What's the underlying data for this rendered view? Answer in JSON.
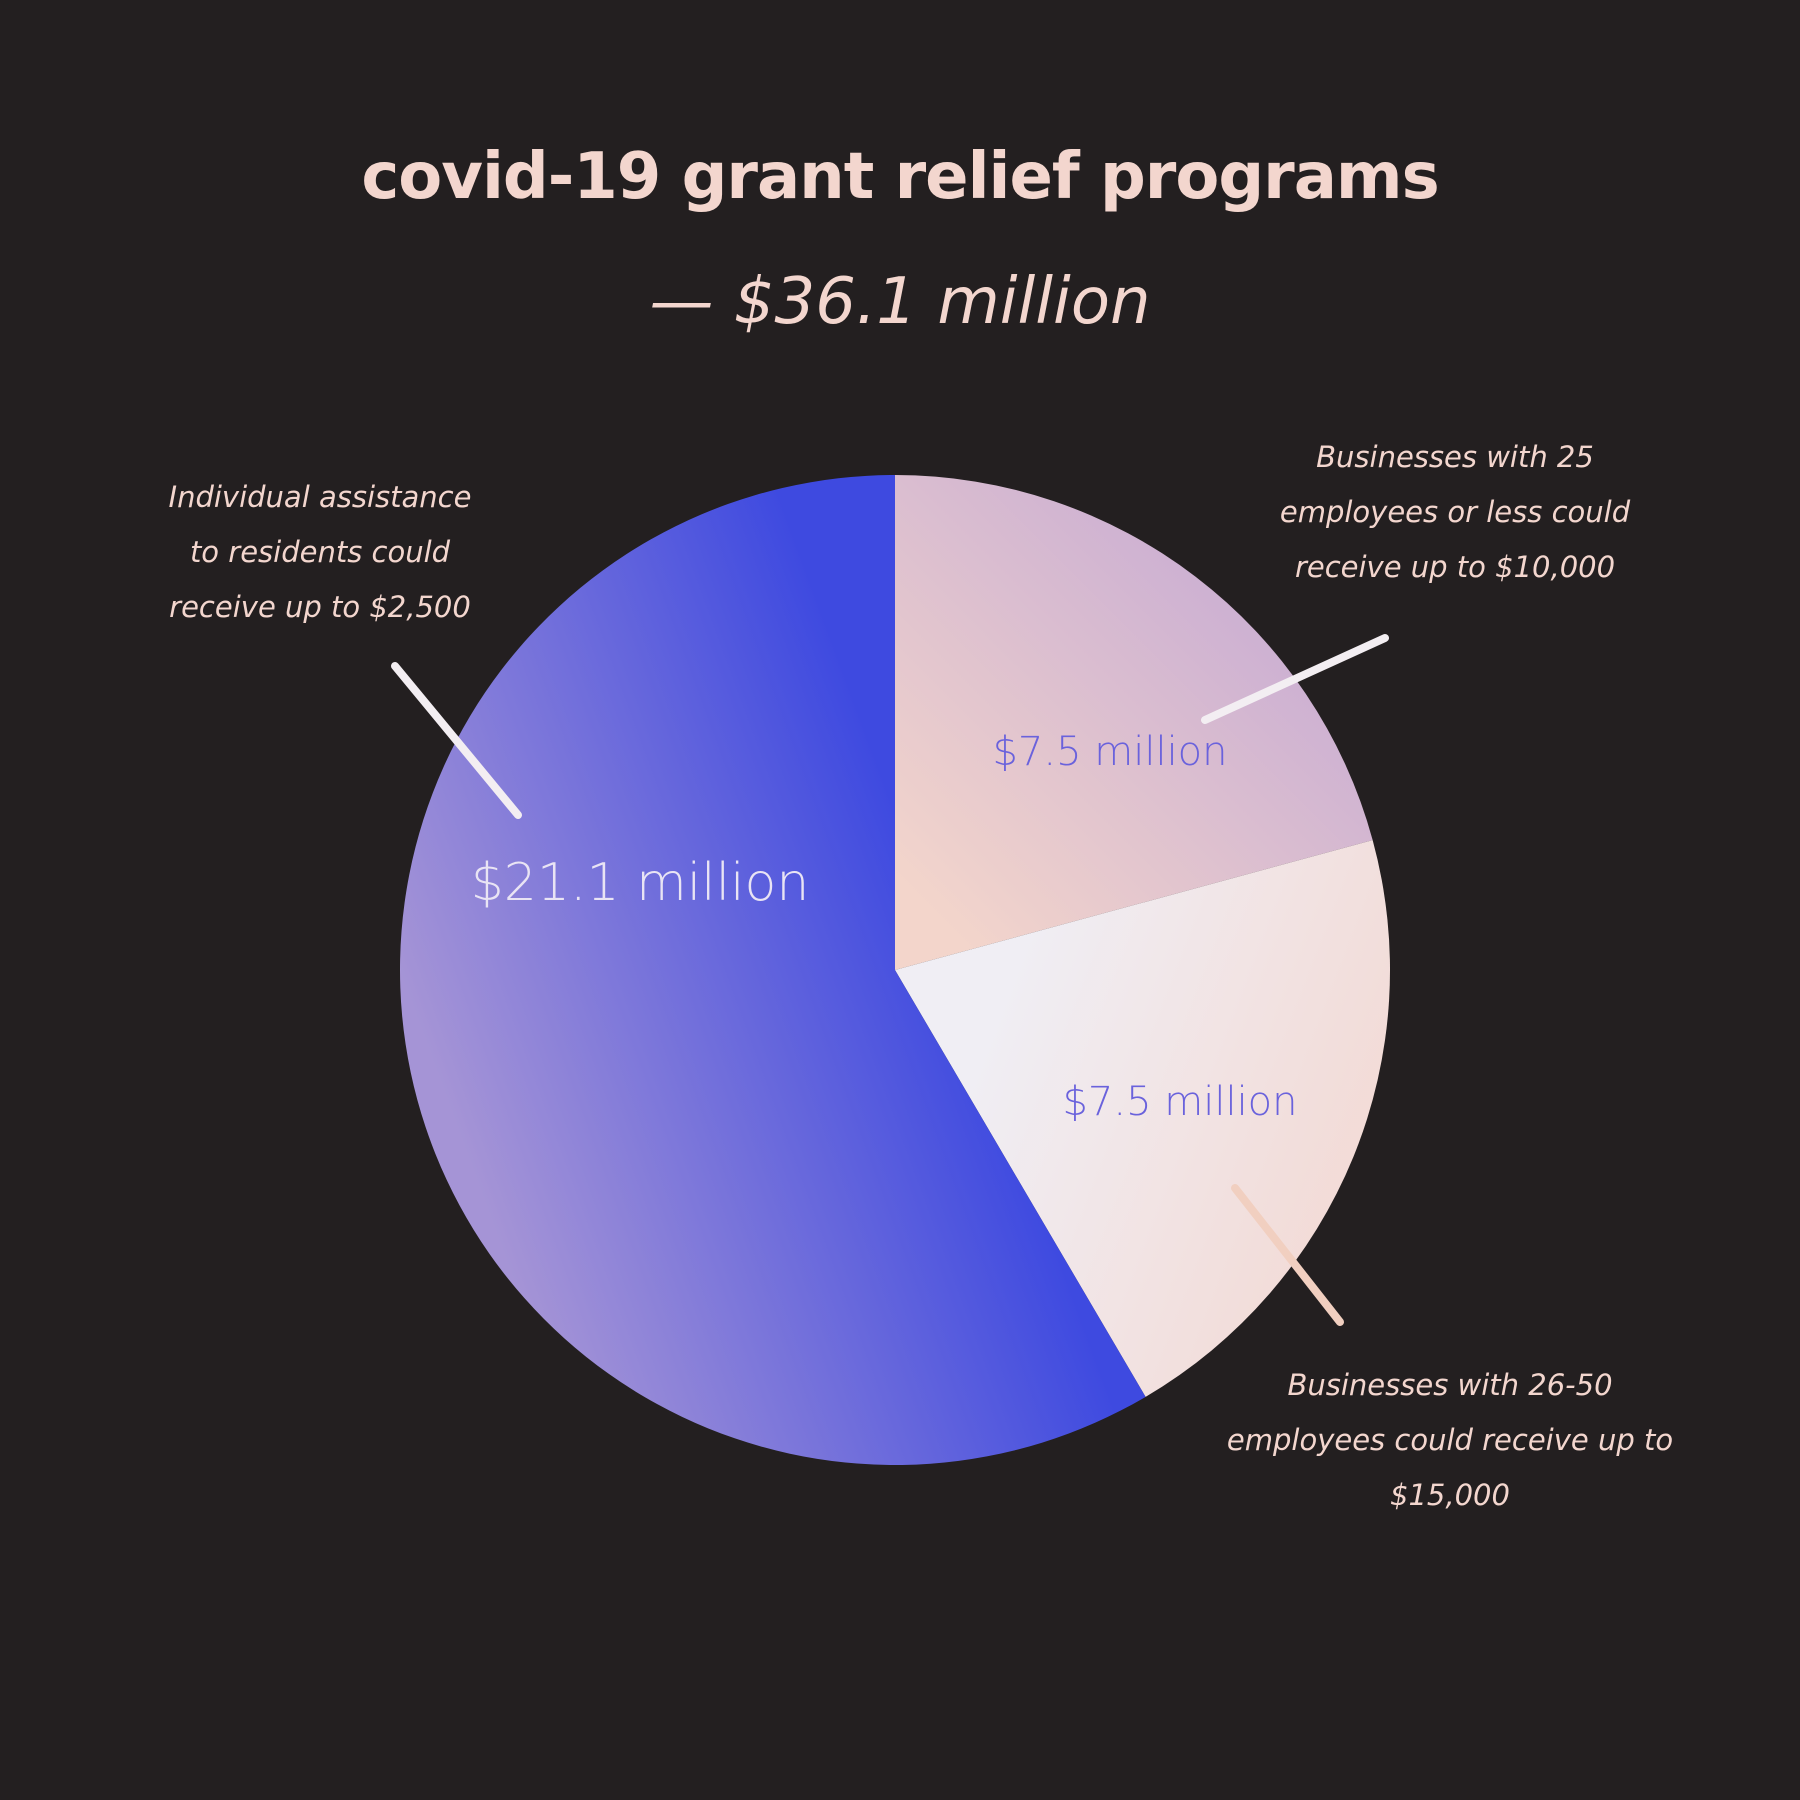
{
  "chart_data": {
    "type": "pie",
    "title": "covid-19 grant relief programs",
    "subtitle": "— $36.1 million",
    "unit": "million dollars",
    "slices": [
      {
        "label": "$7.5 million",
        "value": 7.5,
        "annotation": "Businesses with 25 employees or less could receive up to $10,000",
        "annotation_lines": [
          "Businesses with 25",
          "employees or less could",
          "receive up to $10,000"
        ],
        "label_color": "#6a62dc",
        "leader_color": "#f3eef2"
      },
      {
        "label": "$7.5 million",
        "value": 7.5,
        "annotation": "Businesses with 26-50 employees could receive up to $15,000",
        "annotation_lines": [
          "Businesses with 26-50",
          "employees could receive up to",
          "$15,000"
        ],
        "label_color": "#6a62dc",
        "leader_color": "#f1cfc0"
      },
      {
        "label": "$21.1 million",
        "value": 21.1,
        "annotation": "Individual assistance to residents could receive up to $2,500",
        "annotation_lines": [
          "Individual assistance",
          "to residents could",
          "receive up to $2,500"
        ],
        "label_color": "#e9e4f4",
        "leader_color": "#f3eef2"
      }
    ]
  },
  "colors": {
    "background": "#231f20",
    "title": "#f3d6ce",
    "blue": "#3e4ae0",
    "lavender": "#a594d6",
    "peach": "#f3d5cb",
    "mauve": "#c4a8d4",
    "pale": "#f0eef4",
    "pink": "#f3dad5"
  }
}
